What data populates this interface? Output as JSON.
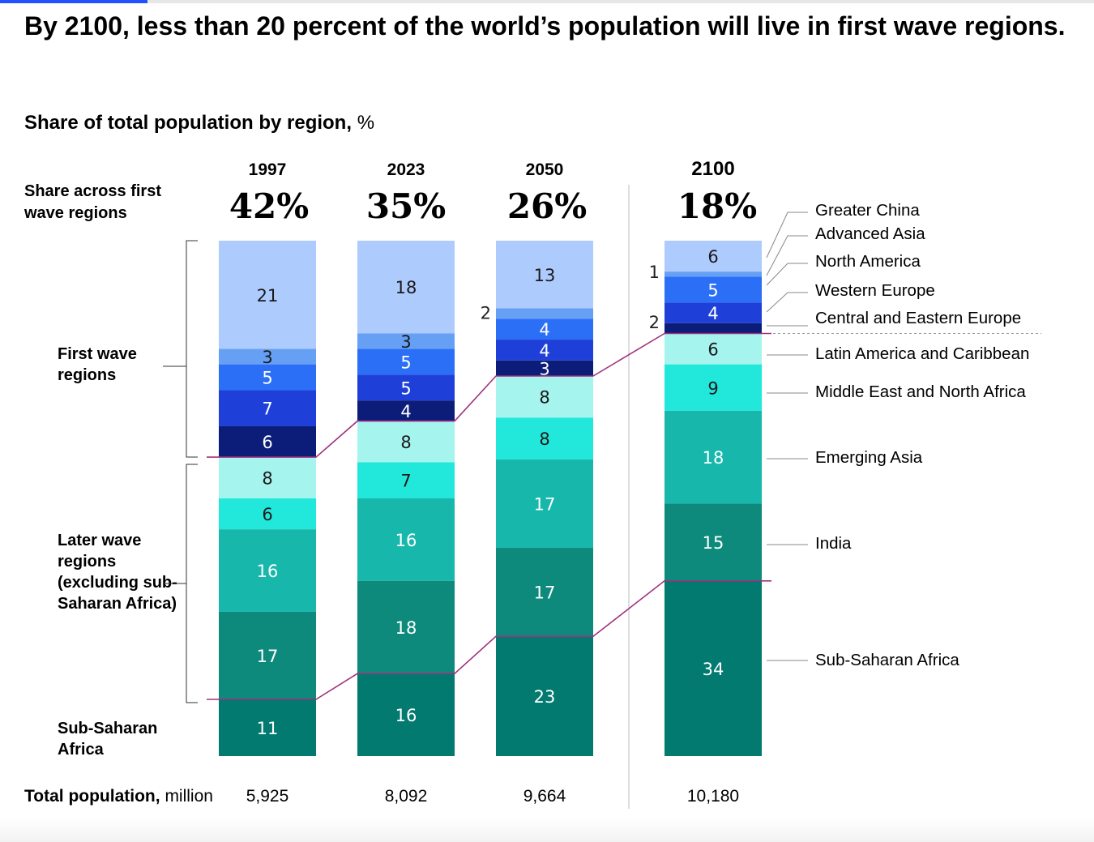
{
  "title": "By 2100, less than 20 percent of the world’s population will live in first wave regions.",
  "subtitle": "Share of total population by region,",
  "subtitle_unit": "%",
  "share_label": "Share across first wave regions",
  "group_labels": {
    "first_wave": "First wave regions",
    "later_wave": "Later wave regions (excluding sub-Saharan Africa)",
    "ssa": "Sub-Saharan Africa"
  },
  "total_label": "Total population,",
  "total_unit": "million",
  "years": [
    "1997",
    "2023",
    "2050",
    "2100"
  ],
  "share_pct": [
    "42%",
    "35%",
    "26%",
    "18%"
  ],
  "totals": [
    "5,925",
    "8,092",
    "9,664",
    "10,180"
  ],
  "legend": [
    "Greater China",
    "Advanced Asia",
    "North America",
    "Western Europe",
    "Central and Eastern Europe",
    "Latin America and Caribbean",
    "Middle East and North Africa",
    "Emerging Asia",
    "India",
    "Sub-Saharan Africa"
  ],
  "colors": {
    "Greater China": "#aecbfe",
    "Advanced Asia": "#65a0f4",
    "North America": "#2b6ff7",
    "Western Europe": "#1f40d8",
    "Central and Eastern Europe": "#0b1d79",
    "Latin America and Caribbean": "#a6f4ee",
    "Middle East and North Africa": "#22e8dc",
    "Emerging Asia": "#17b8ab",
    "India": "#0e8a7d",
    "Sub-Saharan Africa": "#027a70",
    "connector": "#a0307e"
  },
  "chart_data": {
    "type": "bar",
    "stacked": true,
    "categories": [
      "1997",
      "2023",
      "2050",
      "2100"
    ],
    "series": [
      {
        "name": "Greater China",
        "values": [
          21,
          18,
          13,
          6
        ]
      },
      {
        "name": "Advanced Asia",
        "values": [
          3,
          3,
          2,
          1
        ]
      },
      {
        "name": "North America",
        "values": [
          5,
          5,
          4,
          5
        ]
      },
      {
        "name": "Western Europe",
        "values": [
          7,
          5,
          4,
          4
        ]
      },
      {
        "name": "Central and Eastern Europe",
        "values": [
          6,
          4,
          3,
          2
        ]
      },
      {
        "name": "Latin America and Caribbean",
        "values": [
          8,
          8,
          8,
          6
        ]
      },
      {
        "name": "Middle East and North Africa",
        "values": [
          6,
          7,
          8,
          9
        ]
      },
      {
        "name": "Emerging Asia",
        "values": [
          16,
          16,
          17,
          18
        ]
      },
      {
        "name": "India",
        "values": [
          17,
          18,
          17,
          15
        ]
      },
      {
        "name": "Sub-Saharan Africa",
        "values": [
          11,
          16,
          23,
          34
        ]
      }
    ],
    "ylabel": "%",
    "ylim": [
      0,
      100
    ]
  }
}
